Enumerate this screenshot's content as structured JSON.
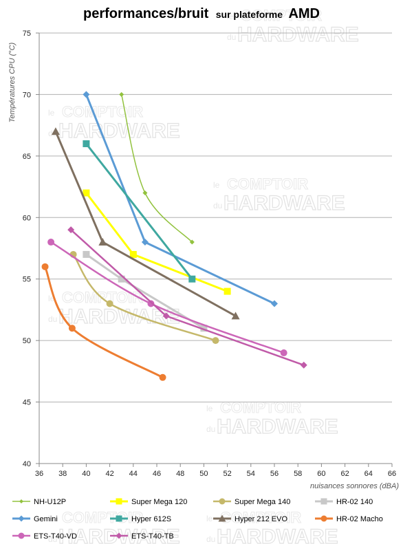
{
  "title": {
    "main": "performances/bruit",
    "middle": "sur plateforme",
    "end": "AMD"
  },
  "watermark": {
    "line1": "COMPTOIR",
    "line2": "HARDWARE",
    "prefix1": "le",
    "prefix2": "du"
  },
  "chart_data": {
    "type": "line",
    "title": "performances/bruit sur plateforme AMD",
    "xlabel": "nuisances sonnores (dBA)",
    "ylabel": "Températures CPU (°C)",
    "xlim": [
      36,
      66
    ],
    "ylim": [
      40,
      75
    ],
    "xticks": [
      36,
      38,
      40,
      42,
      44,
      46,
      48,
      50,
      52,
      54,
      56,
      58,
      60,
      62,
      64,
      66
    ],
    "yticks": [
      40,
      45,
      50,
      55,
      60,
      65,
      70,
      75
    ],
    "grid": "horizontal",
    "legend_position": "bottom",
    "series": [
      {
        "name": "NH-U12P",
        "color": "#92c23e",
        "marker": "diamond",
        "width": 1.5,
        "x": [
          43.0,
          45.0,
          49.0
        ],
        "y": [
          70,
          62,
          58
        ],
        "smooth": true
      },
      {
        "name": "Super Mega 120",
        "color": "#ffff00",
        "marker": "square",
        "width": 3,
        "x": [
          40.0,
          44.0,
          52.0
        ],
        "y": [
          62,
          57,
          54
        ],
        "smooth": false
      },
      {
        "name": "Super Mega 140",
        "color": "#c5b86a",
        "marker": "circle",
        "width": 2.5,
        "x": [
          38.9,
          42.0,
          51.0
        ],
        "y": [
          57,
          53,
          50
        ],
        "smooth": true
      },
      {
        "name": "HR-02 140",
        "color": "#c8c8c8",
        "marker": "square",
        "width": 3,
        "x": [
          40.0,
          43.0,
          50.0
        ],
        "y": [
          57,
          55,
          51
        ],
        "smooth": false
      },
      {
        "name": "Gemini",
        "color": "#5b9bd5",
        "marker": "diamond",
        "width": 3,
        "x": [
          40.0,
          45.0,
          56.0
        ],
        "y": [
          70,
          58,
          53
        ],
        "smooth": false
      },
      {
        "name": "Hyper 612S",
        "color": "#3fa8a0",
        "marker": "square",
        "width": 3,
        "x": [
          40.0,
          49.0
        ],
        "y": [
          66,
          55
        ],
        "smooth": false
      },
      {
        "name": "Hyper 212 EVO",
        "color": "#7f7060",
        "marker": "triangle",
        "width": 3,
        "x": [
          37.4,
          41.4,
          52.7
        ],
        "y": [
          67,
          58,
          52
        ],
        "smooth": false
      },
      {
        "name": "HR-02 Macho",
        "color": "#ed7d31",
        "marker": "circle",
        "width": 3,
        "x": [
          36.5,
          38.8,
          46.5
        ],
        "y": [
          56,
          51,
          47
        ],
        "smooth": true
      },
      {
        "name": "ETS-T40-VD",
        "color": "#cc66b8",
        "marker": "circle",
        "width": 2.5,
        "x": [
          37.0,
          45.5,
          56.8
        ],
        "y": [
          58,
          53,
          49
        ],
        "smooth": true
      },
      {
        "name": "ETS-T40-TB",
        "color": "#c05aa8",
        "marker": "diamond",
        "width": 2.5,
        "x": [
          38.7,
          46.8,
          58.5
        ],
        "y": [
          59,
          52,
          48
        ],
        "smooth": false
      }
    ]
  }
}
